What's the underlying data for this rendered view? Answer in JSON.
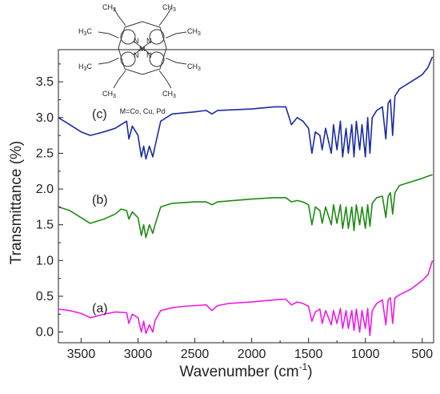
{
  "chart_data": {
    "type": "line",
    "xlabel": "Wavenumber (cm",
    "xlabel_sup": "-1",
    "xlabel_tail": ")",
    "ylabel": "Transmittance (%)",
    "xlim": [
      3700,
      400
    ],
    "ylim": [
      -0.15,
      3.95
    ],
    "x_reversed": true,
    "xticks": [
      3500,
      3000,
      2500,
      2000,
      1500,
      1000,
      500
    ],
    "xtick_labels": [
      "3500",
      "3000",
      "2500",
      "2000",
      "1500",
      "1000",
      "500"
    ],
    "yticks": [
      0.0,
      0.5,
      1.0,
      1.5,
      2.0,
      2.5,
      3.0,
      3.5
    ],
    "ytick_labels": [
      "0.0",
      "0.5",
      "1.0",
      "1.5",
      "2.0",
      "2.5",
      "3.0",
      "3.5"
    ],
    "grid": false,
    "series": [
      {
        "name": "(a)",
        "color": "#ee1be4",
        "points": [
          [
            3700,
            0.32
          ],
          [
            3600,
            0.3
          ],
          [
            3500,
            0.26
          ],
          [
            3420,
            0.2
          ],
          [
            3300,
            0.25
          ],
          [
            3200,
            0.28
          ],
          [
            3100,
            0.27
          ],
          [
            3080,
            0.12
          ],
          [
            3050,
            0.25
          ],
          [
            3000,
            0.2
          ],
          [
            2970,
            0.0
          ],
          [
            2950,
            0.15
          ],
          [
            2930,
            -0.02
          ],
          [
            2900,
            0.1
          ],
          [
            2870,
            0.0
          ],
          [
            2850,
            0.16
          ],
          [
            2800,
            0.3
          ],
          [
            2700,
            0.34
          ],
          [
            2600,
            0.36
          ],
          [
            2400,
            0.38
          ],
          [
            2350,
            0.3
          ],
          [
            2300,
            0.37
          ],
          [
            2200,
            0.4
          ],
          [
            2000,
            0.42
          ],
          [
            1800,
            0.45
          ],
          [
            1700,
            0.46
          ],
          [
            1650,
            0.38
          ],
          [
            1600,
            0.42
          ],
          [
            1550,
            0.4
          ],
          [
            1500,
            0.36
          ],
          [
            1470,
            0.15
          ],
          [
            1440,
            0.28
          ],
          [
            1400,
            0.32
          ],
          [
            1380,
            0.12
          ],
          [
            1350,
            0.3
          ],
          [
            1300,
            0.1
          ],
          [
            1280,
            0.3
          ],
          [
            1250,
            0.12
          ],
          [
            1220,
            0.33
          ],
          [
            1200,
            0.05
          ],
          [
            1170,
            0.3
          ],
          [
            1150,
            0.05
          ],
          [
            1120,
            0.3
          ],
          [
            1100,
            0.02
          ],
          [
            1080,
            0.32
          ],
          [
            1050,
            0.0
          ],
          [
            1030,
            0.3
          ],
          [
            1000,
            0.05
          ],
          [
            980,
            0.33
          ],
          [
            960,
            -0.05
          ],
          [
            940,
            0.3
          ],
          [
            900,
            0.4
          ],
          [
            850,
            0.45
          ],
          [
            820,
            0.1
          ],
          [
            800,
            0.45
          ],
          [
            780,
            0.48
          ],
          [
            760,
            0.12
          ],
          [
            740,
            0.48
          ],
          [
            700,
            0.52
          ],
          [
            600,
            0.6
          ],
          [
            500,
            0.72
          ],
          [
            450,
            0.8
          ],
          [
            410,
            1.0
          ]
        ]
      },
      {
        "name": "(b)",
        "color": "#1f8a14",
        "points": [
          [
            3700,
            1.75
          ],
          [
            3600,
            1.7
          ],
          [
            3500,
            1.6
          ],
          [
            3420,
            1.52
          ],
          [
            3300,
            1.58
          ],
          [
            3200,
            1.65
          ],
          [
            3150,
            1.72
          ],
          [
            3100,
            1.7
          ],
          [
            3080,
            1.58
          ],
          [
            3050,
            1.68
          ],
          [
            3000,
            1.6
          ],
          [
            2970,
            1.35
          ],
          [
            2950,
            1.5
          ],
          [
            2930,
            1.32
          ],
          [
            2900,
            1.5
          ],
          [
            2870,
            1.38
          ],
          [
            2850,
            1.5
          ],
          [
            2800,
            1.75
          ],
          [
            2700,
            1.8
          ],
          [
            2500,
            1.82
          ],
          [
            2400,
            1.82
          ],
          [
            2350,
            1.78
          ],
          [
            2300,
            1.82
          ],
          [
            2000,
            1.86
          ],
          [
            1800,
            1.88
          ],
          [
            1700,
            1.88
          ],
          [
            1650,
            1.82
          ],
          [
            1600,
            1.84
          ],
          [
            1550,
            1.82
          ],
          [
            1500,
            1.78
          ],
          [
            1470,
            1.5
          ],
          [
            1440,
            1.75
          ],
          [
            1400,
            1.7
          ],
          [
            1380,
            1.52
          ],
          [
            1350,
            1.75
          ],
          [
            1300,
            1.5
          ],
          [
            1280,
            1.78
          ],
          [
            1250,
            1.52
          ],
          [
            1220,
            1.78
          ],
          [
            1200,
            1.45
          ],
          [
            1170,
            1.75
          ],
          [
            1150,
            1.45
          ],
          [
            1120,
            1.75
          ],
          [
            1100,
            1.42
          ],
          [
            1080,
            1.78
          ],
          [
            1050,
            1.5
          ],
          [
            1030,
            1.75
          ],
          [
            1000,
            1.45
          ],
          [
            980,
            1.78
          ],
          [
            960,
            1.48
          ],
          [
            940,
            1.8
          ],
          [
            900,
            1.88
          ],
          [
            850,
            1.9
          ],
          [
            820,
            1.6
          ],
          [
            800,
            1.9
          ],
          [
            780,
            1.95
          ],
          [
            760,
            1.65
          ],
          [
            740,
            1.95
          ],
          [
            700,
            2.05
          ],
          [
            600,
            2.1
          ],
          [
            500,
            2.15
          ],
          [
            450,
            2.18
          ],
          [
            410,
            2.2
          ]
        ]
      },
      {
        "name": "(c)",
        "color": "#1a2ca0",
        "points": [
          [
            3700,
            3.0
          ],
          [
            3600,
            2.9
          ],
          [
            3500,
            2.8
          ],
          [
            3420,
            2.75
          ],
          [
            3300,
            2.8
          ],
          [
            3200,
            2.85
          ],
          [
            3150,
            2.9
          ],
          [
            3100,
            2.95
          ],
          [
            3080,
            2.7
          ],
          [
            3050,
            2.88
          ],
          [
            3000,
            2.75
          ],
          [
            2970,
            2.45
          ],
          [
            2950,
            2.6
          ],
          [
            2930,
            2.42
          ],
          [
            2900,
            2.6
          ],
          [
            2870,
            2.45
          ],
          [
            2850,
            2.6
          ],
          [
            2800,
            2.95
          ],
          [
            2700,
            3.05
          ],
          [
            2500,
            3.08
          ],
          [
            2400,
            3.1
          ],
          [
            2350,
            3.05
          ],
          [
            2300,
            3.1
          ],
          [
            2000,
            3.12
          ],
          [
            1800,
            3.15
          ],
          [
            1700,
            3.15
          ],
          [
            1650,
            2.9
          ],
          [
            1600,
            3.0
          ],
          [
            1550,
            2.95
          ],
          [
            1500,
            2.85
          ],
          [
            1470,
            2.5
          ],
          [
            1440,
            2.8
          ],
          [
            1400,
            2.75
          ],
          [
            1380,
            2.55
          ],
          [
            1350,
            2.85
          ],
          [
            1300,
            2.5
          ],
          [
            1280,
            2.9
          ],
          [
            1250,
            2.55
          ],
          [
            1220,
            2.95
          ],
          [
            1200,
            2.45
          ],
          [
            1170,
            2.85
          ],
          [
            1150,
            2.5
          ],
          [
            1120,
            2.9
          ],
          [
            1100,
            2.45
          ],
          [
            1080,
            2.95
          ],
          [
            1050,
            2.55
          ],
          [
            1030,
            2.9
          ],
          [
            1000,
            2.45
          ],
          [
            980,
            3.0
          ],
          [
            960,
            2.5
          ],
          [
            940,
            3.0
          ],
          [
            900,
            3.1
          ],
          [
            850,
            3.15
          ],
          [
            820,
            2.7
          ],
          [
            800,
            3.2
          ],
          [
            780,
            3.25
          ],
          [
            760,
            2.75
          ],
          [
            740,
            3.3
          ],
          [
            700,
            3.4
          ],
          [
            600,
            3.5
          ],
          [
            500,
            3.6
          ],
          [
            450,
            3.7
          ],
          [
            410,
            3.85
          ]
        ]
      }
    ],
    "annotations": [
      "(a)",
      "(b)",
      "(c)"
    ]
  },
  "molecule": {
    "caption": "M=Co, Cu, Pd",
    "ch3": "CH",
    "h3c": "H",
    "sub3": "3",
    "c": "C",
    "n": "N",
    "m": "M"
  }
}
